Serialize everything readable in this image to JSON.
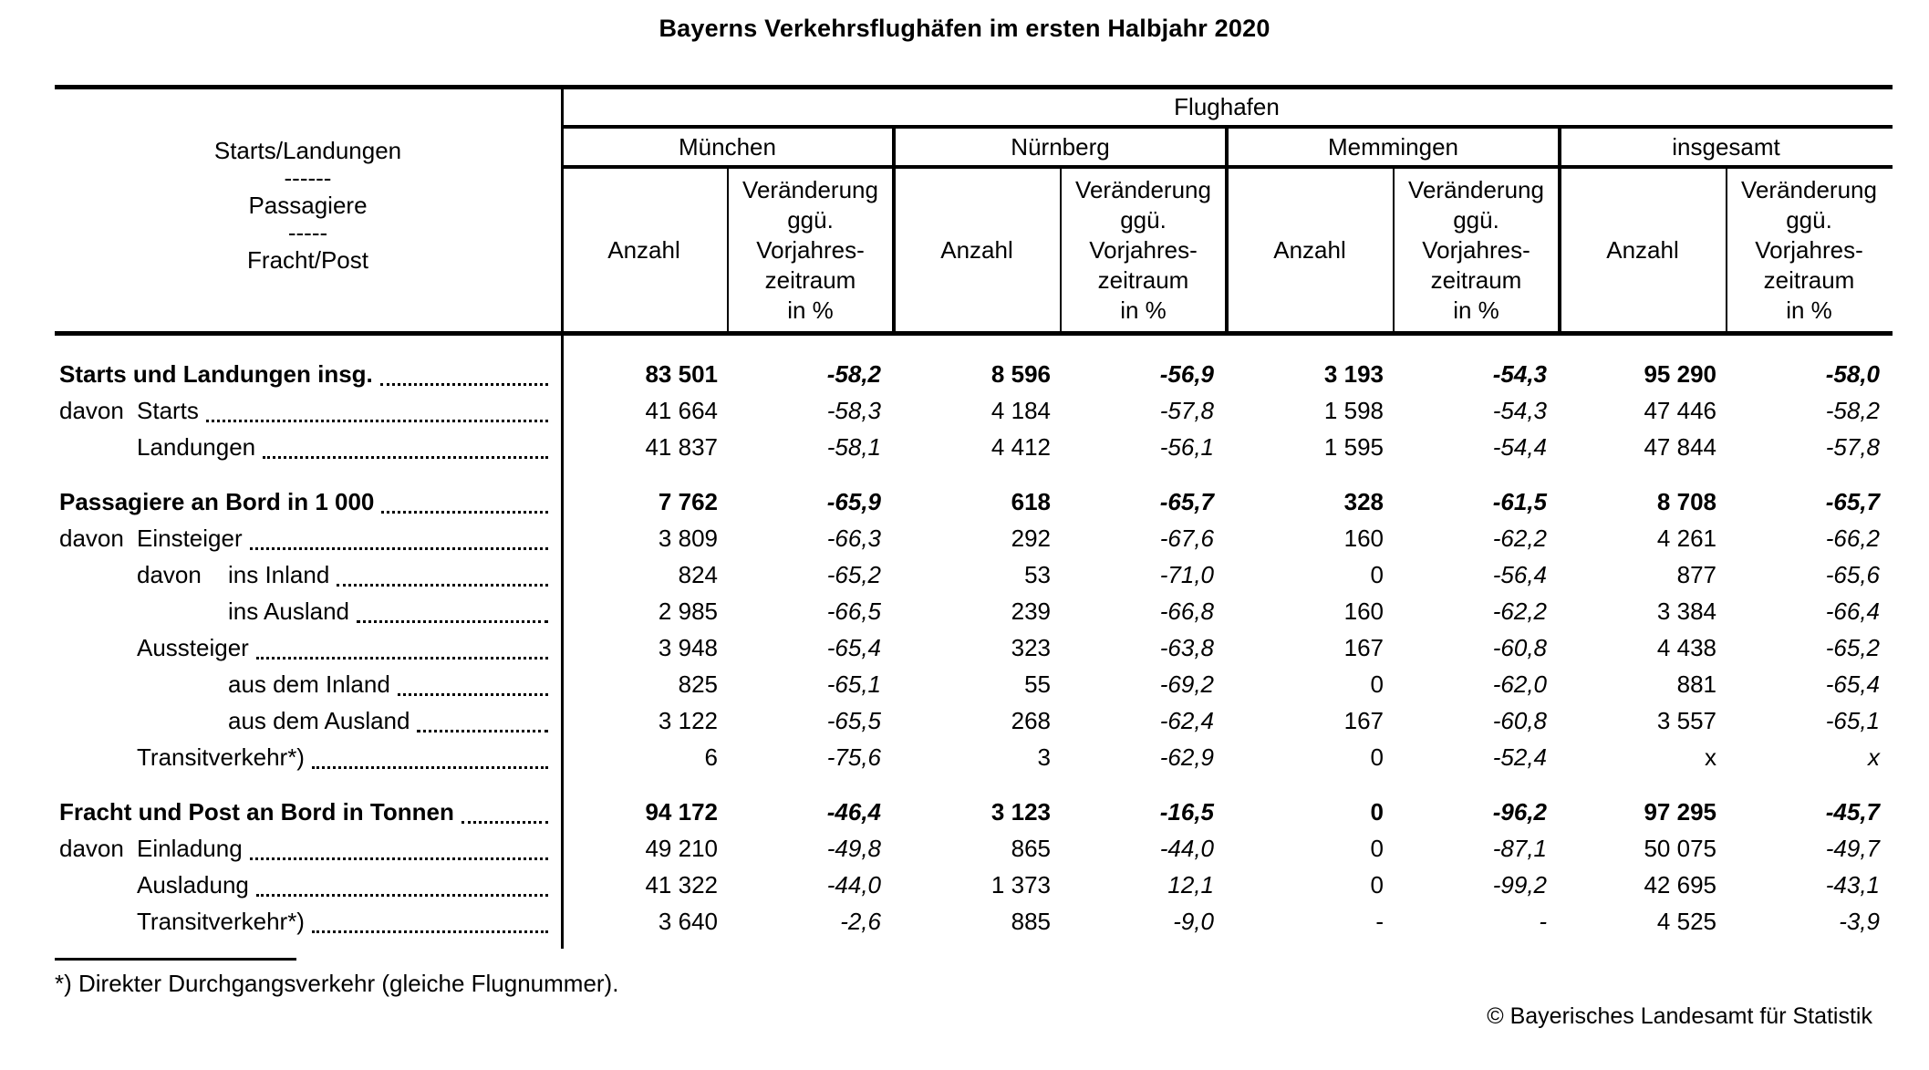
{
  "title": "Bayerns Verkehrsflughäfen im ersten Halbjahr 2020",
  "table": {
    "group_header": "Flughafen",
    "stub_header": [
      "Starts/Landungen",
      "------",
      "Passagiere",
      "-----",
      "Fracht/Post"
    ],
    "airports": [
      "München",
      "Nürnberg",
      "Memmingen",
      "insgesamt"
    ],
    "subheaders": {
      "anzahl": "Anzahl",
      "change_lines": [
        "Veränderung",
        "ggü.",
        "Vorjahres-",
        "zeitraum",
        "in %"
      ]
    },
    "rows": [
      {
        "prefix": "",
        "prefix_indent": 0,
        "indent": 0,
        "bold": true,
        "gap": false,
        "label": "Starts und Landungen insg.",
        "values": [
          "83 501",
          "-58,2",
          "8 596",
          "-56,9",
          "3 193",
          "-54,3",
          "95 290",
          "-58,0"
        ]
      },
      {
        "prefix": "davon",
        "prefix_indent": 0,
        "indent": 1,
        "bold": false,
        "gap": false,
        "label": "Starts",
        "values": [
          "41 664",
          "-58,3",
          "4 184",
          "-57,8",
          "1 598",
          "-54,3",
          "47 446",
          "-58,2"
        ]
      },
      {
        "prefix": "",
        "prefix_indent": 0,
        "indent": 1,
        "bold": false,
        "gap": false,
        "label": "Landungen",
        "values": [
          "41 837",
          "-58,1",
          "4 412",
          "-56,1",
          "1 595",
          "-54,4",
          "47 844",
          "-57,8"
        ]
      },
      {
        "prefix": "",
        "prefix_indent": 0,
        "indent": 0,
        "bold": true,
        "gap": true,
        "label": "Passagiere an Bord in 1 000",
        "values": [
          "7 762",
          "-65,9",
          "618",
          "-65,7",
          "328",
          "-61,5",
          "8 708",
          "-65,7"
        ]
      },
      {
        "prefix": "davon",
        "prefix_indent": 0,
        "indent": 1,
        "bold": false,
        "gap": false,
        "label": "Einsteiger",
        "values": [
          "3 809",
          "-66,3",
          "292",
          "-67,6",
          "160",
          "-62,2",
          "4 261",
          "-66,2"
        ]
      },
      {
        "prefix": "davon",
        "prefix_indent": 1,
        "indent": 2,
        "bold": false,
        "gap": false,
        "label": "ins Inland",
        "values": [
          "824",
          "-65,2",
          "53",
          "-71,0",
          "0",
          "-56,4",
          "877",
          "-65,6"
        ]
      },
      {
        "prefix": "",
        "prefix_indent": 0,
        "indent": 2,
        "bold": false,
        "gap": false,
        "label": "ins Ausland",
        "values": [
          "2 985",
          "-66,5",
          "239",
          "-66,8",
          "160",
          "-62,2",
          "3 384",
          "-66,4"
        ]
      },
      {
        "prefix": "",
        "prefix_indent": 0,
        "indent": 1,
        "bold": false,
        "gap": false,
        "label": "Aussteiger",
        "values": [
          "3 948",
          "-65,4",
          "323",
          "-63,8",
          "167",
          "-60,8",
          "4 438",
          "-65,2"
        ]
      },
      {
        "prefix": "",
        "prefix_indent": 0,
        "indent": 2,
        "bold": false,
        "gap": false,
        "label": "aus dem Inland",
        "values": [
          "825",
          "-65,1",
          "55",
          "-69,2",
          "0",
          "-62,0",
          "881",
          "-65,4"
        ]
      },
      {
        "prefix": "",
        "prefix_indent": 0,
        "indent": 2,
        "bold": false,
        "gap": false,
        "label": "aus dem Ausland",
        "values": [
          "3 122",
          "-65,5",
          "268",
          "-62,4",
          "167",
          "-60,8",
          "3 557",
          "-65,1"
        ]
      },
      {
        "prefix": "",
        "prefix_indent": 0,
        "indent": 1,
        "bold": false,
        "gap": false,
        "label": "Transitverkehr*)",
        "values": [
          "6",
          "-75,6",
          "3",
          "-62,9",
          "0",
          "-52,4",
          "x",
          "x"
        ]
      },
      {
        "prefix": "",
        "prefix_indent": 0,
        "indent": 0,
        "bold": true,
        "gap": true,
        "label": "Fracht und Post an Bord in Tonnen",
        "values": [
          "94 172",
          "-46,4",
          "3 123",
          "-16,5",
          "0",
          "-96,2",
          "97 295",
          "-45,7"
        ]
      },
      {
        "prefix": "davon",
        "prefix_indent": 0,
        "indent": 1,
        "bold": false,
        "gap": false,
        "label": "Einladung",
        "values": [
          "49 210",
          "-49,8",
          "865",
          "-44,0",
          "0",
          "-87,1",
          "50 075",
          "-49,7"
        ]
      },
      {
        "prefix": "",
        "prefix_indent": 0,
        "indent": 1,
        "bold": false,
        "gap": false,
        "label": "Ausladung",
        "values": [
          "41 322",
          "-44,0",
          "1 373",
          "12,1",
          "0",
          "-99,2",
          "42 695",
          "-43,1"
        ]
      },
      {
        "prefix": "",
        "prefix_indent": 0,
        "indent": 1,
        "bold": false,
        "gap": false,
        "label": "Transitverkehr*)",
        "values": [
          "3 640",
          "-2,6",
          "885",
          "-9,0",
          "-",
          "-",
          "4 525",
          "-3,9"
        ]
      }
    ]
  },
  "footnote": "*) Direkter Durchgangsverkehr (gleiche Flugnummer).",
  "copyright": "© Bayerisches Landesamt für Statistik"
}
